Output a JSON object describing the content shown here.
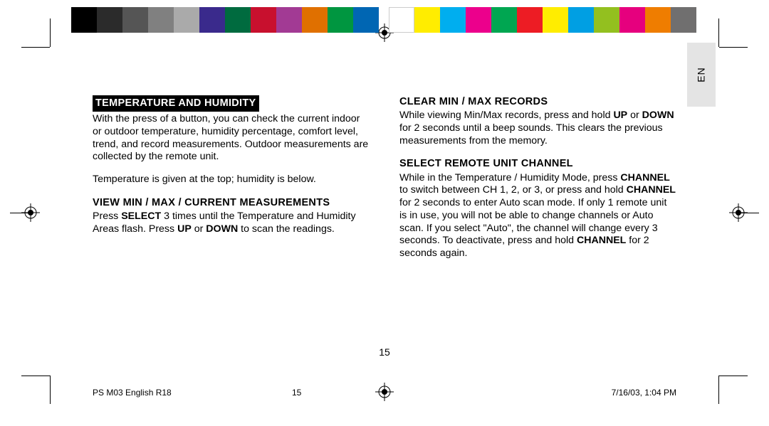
{
  "colorbars": {
    "left": [
      "#000000",
      "#2b2b2b",
      "#555555",
      "#808080",
      "#aaaaaa",
      "#3a2a8c",
      "#006b3f",
      "#c8102e",
      "#a23a94",
      "#e07000",
      "#009640",
      "#0066b3"
    ],
    "right": [
      "#ffffff",
      "#ffed00",
      "#00aeef",
      "#ec008c",
      "#00a651",
      "#ed1c24",
      "#ffed00",
      "#009fe3",
      "#93c01f",
      "#e6007e",
      "#ef7d00",
      "#706f6f"
    ]
  },
  "lang_tab": "EN",
  "left_col": {
    "h1": "TEMPERATURE AND HUMIDITY",
    "p1": "With the press of a button, you can check the current indoor or outdoor temperature, humidity percentage, comfort level, trend, and record measurements. Outdoor measurements are collected by the remote unit.",
    "p2": "Temperature is given at the top; humidity is below.",
    "h2": "VIEW MIN / MAX / CURRENT MEASUREMENTS",
    "p3_a": "Press ",
    "p3_b": "SELECT",
    "p3_c": " 3 times until the Temperature and Humidity Areas flash. Press ",
    "p3_d": "UP",
    "p3_e": " or ",
    "p3_f": "DOWN",
    "p3_g": " to scan the readings."
  },
  "right_col": {
    "h1": "CLEAR MIN / MAX RECORDS",
    "p1_a": "While viewing Min/Max records, press and hold ",
    "p1_b": "UP",
    "p1_c": " or ",
    "p1_d": "DOWN",
    "p1_e": " for 2 seconds until a beep sounds. This clears the previous measurements from the memory.",
    "h2": "SELECT REMOTE UNIT CHANNEL",
    "p2_a": "While in the Temperature / Humidity Mode, press ",
    "p2_b": "CHANNEL",
    "p2_c": " to switch between CH 1, 2, or 3, or press and hold ",
    "p2_d": "CHANNEL",
    "p2_e": " for 2 seconds to enter Auto scan mode.  If only 1 remote unit is in use, you will not be able to change channels or Auto scan. If you select \"Auto\", the channel will change every 3 seconds. To deactivate, press and hold ",
    "p2_f": "CHANNEL",
    "p2_g": " for 2 seconds again."
  },
  "page_number": "15",
  "footer": {
    "doc": "PS M03 English R18",
    "page": "15",
    "date": "7/16/03, 1:04 PM"
  }
}
